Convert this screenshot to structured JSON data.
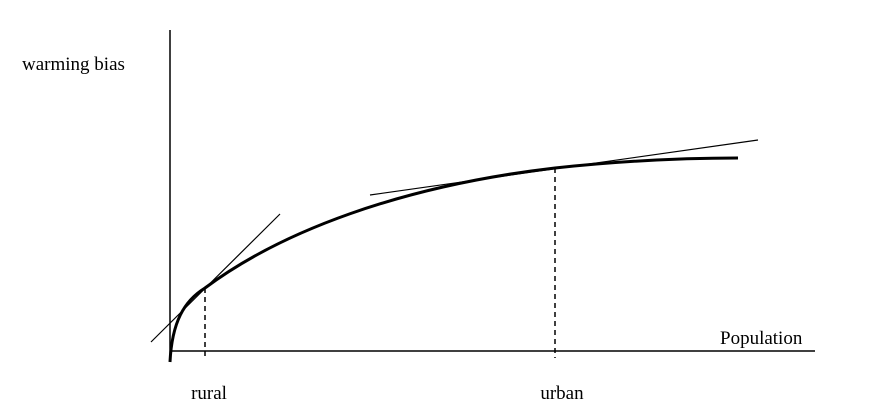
{
  "labels": {
    "y_axis": "warming bias",
    "x_axis": "Population",
    "rural": "rural",
    "urban": "urban"
  }
}
